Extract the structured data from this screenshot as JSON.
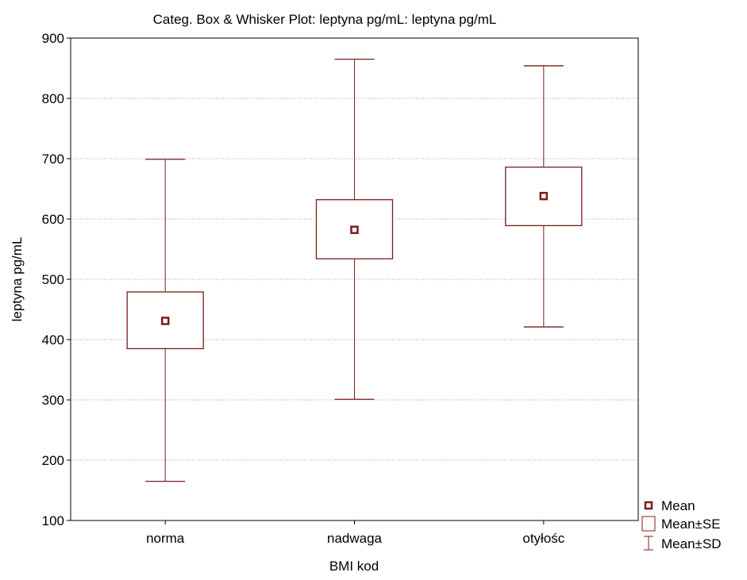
{
  "chart_data": {
    "type": "box",
    "title": "Categ. Box & Whisker Plot: leptyna pg/mL: leptyna pg/mL",
    "xlabel": "BMI kod",
    "ylabel": "leptyna pg/mL",
    "ylim": [
      100,
      900
    ],
    "yticks": [
      100,
      200,
      300,
      400,
      500,
      600,
      700,
      800,
      900
    ],
    "grid": true,
    "legend_position": "right-bottom",
    "legend": [
      "Mean",
      "Mean±SE",
      "Mean±SD"
    ],
    "color": "#7b1c1c",
    "categories": [
      "norma",
      "nadwaga",
      "otyłośc"
    ],
    "series": [
      {
        "category": "norma",
        "mean": 431,
        "se_low": 385,
        "se_high": 479,
        "sd_low": 165,
        "sd_high": 699
      },
      {
        "category": "nadwaga",
        "mean": 582,
        "se_low": 534,
        "se_high": 632,
        "sd_low": 301,
        "sd_high": 865
      },
      {
        "category": "otyłośc",
        "mean": 638,
        "se_low": 589,
        "se_high": 686,
        "sd_low": 421,
        "sd_high": 854
      }
    ]
  }
}
